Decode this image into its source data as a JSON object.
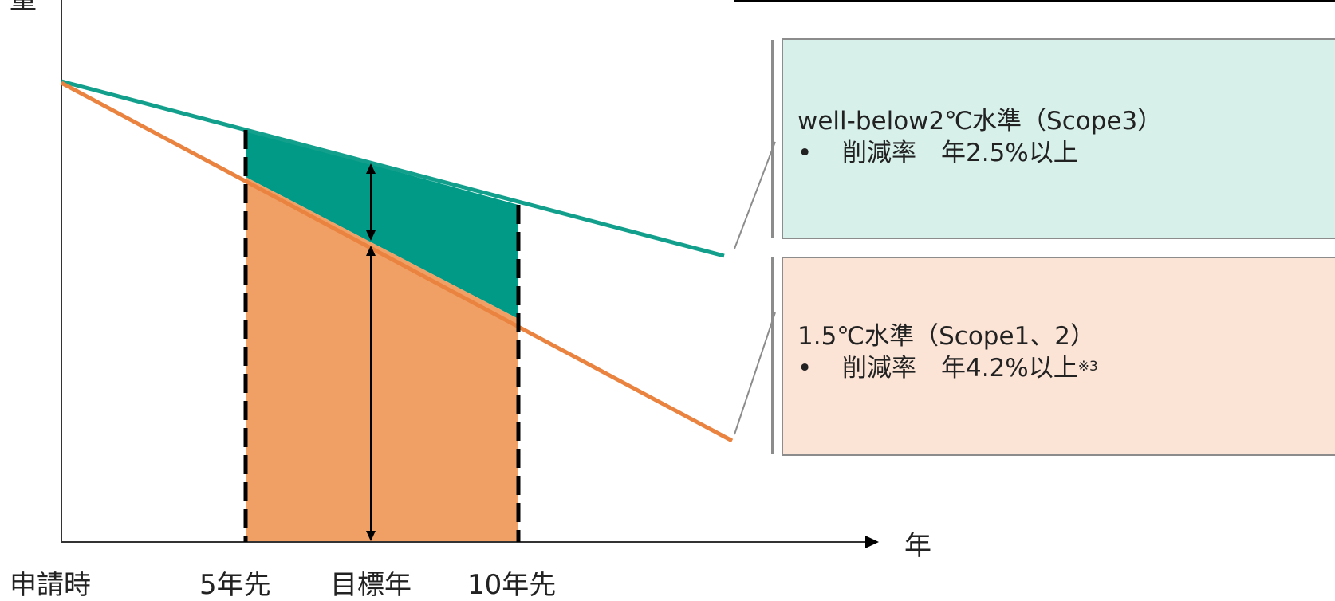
{
  "diagram": {
    "y_axis_label": "量",
    "x_axis_unit": "年",
    "x_ticks": [
      "申請時",
      "5年先",
      "目標年",
      "10年先"
    ]
  },
  "boxes": {
    "wb2": {
      "title": "well-below2℃水準（Scope3）",
      "bullet": "削減率　年2.5%以上",
      "note": "",
      "fill": "#d7f0ea"
    },
    "c15": {
      "title": "1.5℃水準（Scope1、2）",
      "bullet": "削減率　年4.2%以上",
      "note": "※3",
      "fill": "#fbe3d6"
    }
  },
  "colors": {
    "wb2_line": "#12a08c",
    "c15_line": "#e9833f",
    "teal_fill": "#009a86",
    "orange_fill": "#f0a065"
  },
  "bullet_symbol": "•"
}
